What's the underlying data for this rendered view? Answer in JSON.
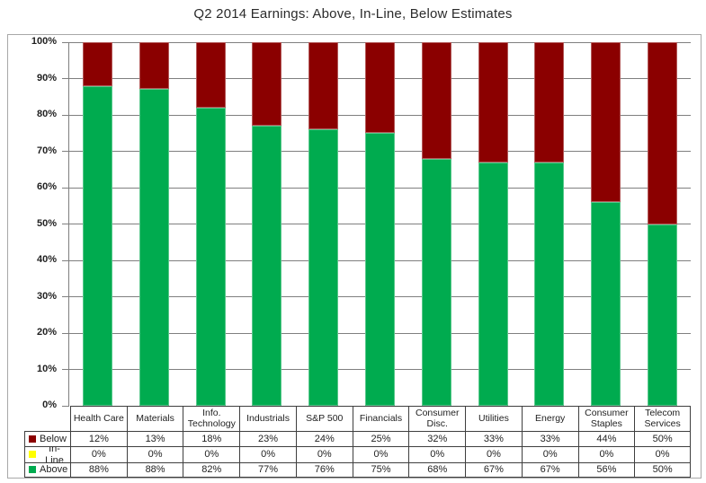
{
  "title": "Q2 2014 Earnings: Above, In-Line, Below Estimates",
  "chart_data": {
    "type": "bar",
    "stacked": true,
    "title": "Q2 2014 Earnings: Above, In-Line, Below Estimates",
    "categories": [
      "Health Care",
      "Materials",
      "Info. Technology",
      "Industrials",
      "S&P 500",
      "Financials",
      "Consumer Disc.",
      "Utilities",
      "Energy",
      "Consumer Staples",
      "Telecom Services"
    ],
    "series": [
      {
        "name": "Below",
        "color": "#8b0000",
        "values": [
          12,
          13,
          18,
          23,
          24,
          25,
          32,
          33,
          33,
          44,
          50
        ]
      },
      {
        "name": "In-Line",
        "color": "#ffff00",
        "values": [
          0,
          0,
          0,
          0,
          0,
          0,
          0,
          0,
          0,
          0,
          0
        ]
      },
      {
        "name": "Above",
        "color": "#00ab4f",
        "values": [
          88,
          88,
          82,
          77,
          76,
          75,
          68,
          67,
          67,
          56,
          50
        ]
      }
    ],
    "stack_order_bottom_to_top": [
      "Above",
      "In-Line",
      "Below"
    ],
    "ylim": [
      0,
      100
    ],
    "yticks": [
      "0%",
      "10%",
      "20%",
      "30%",
      "40%",
      "50%",
      "60%",
      "70%",
      "80%",
      "90%",
      "100%"
    ],
    "grid": true,
    "value_suffix": "%",
    "legend_position": "table-left"
  },
  "colors": {
    "below": "#8b0000",
    "in_line": "#ffff00",
    "above": "#00ab4f",
    "gridline": "#7f7f7f",
    "table_border": "#3f3f3f",
    "frame_border": "#a8a8a8",
    "text": "#1f1f1f"
  }
}
